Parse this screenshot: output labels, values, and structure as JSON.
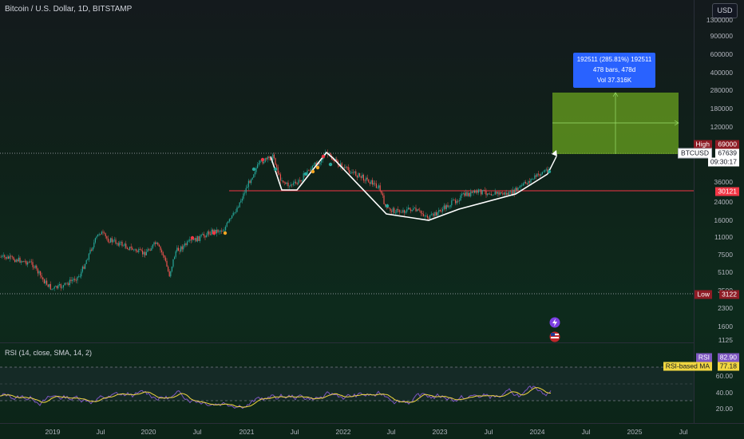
{
  "header": {
    "title": "Bitcoin / U.S. Dollar, 1D, BITSTAMP",
    "currency_button": "USD"
  },
  "price_axis": {
    "ticks": [
      "1300000",
      "900000",
      "600000",
      "400000",
      "280000",
      "180000",
      "120000",
      "36000",
      "24000",
      "16000",
      "11000",
      "7500",
      "5100",
      "3500",
      "2300",
      "1600",
      "1125"
    ],
    "high_label": "High",
    "high_value": "69000",
    "symbol_label": "BTCUSD",
    "last_price": "67639",
    "countdown": "09:30:17",
    "level_value": "30121",
    "low_label": "Low",
    "low_value": "3122"
  },
  "measure_tool": {
    "line1": "192511 (285.81%) 192511",
    "line2": "478 bars, 478d",
    "line3": "Vol 37.316K"
  },
  "rsi_pane": {
    "title": "RSI (14, close, SMA, 14, 2)",
    "rsi_label": "RSI",
    "rsi_value": "82.90",
    "ma_label": "RSI-based MA",
    "ma_value": "77.18",
    "ticks": [
      "60.00",
      "40.00",
      "20.00"
    ]
  },
  "time_axis": {
    "labels": [
      "2019",
      "Jul",
      "2020",
      "Jul",
      "2021",
      "Jul",
      "2022",
      "Jul",
      "2023",
      "Jul",
      "2024",
      "Jul",
      "2025",
      "Jul"
    ]
  },
  "colors": {
    "candle_up": "#26a69a",
    "candle_down": "#ef5350",
    "pattern_line": "#ffffff",
    "level_line": "#f23645",
    "rsi_line": "#7e57c2",
    "rsi_ma": "#f0d640",
    "target_zone": "#6aa31f",
    "measure_box": "#2962ff"
  },
  "icons": [
    "lightning-icon",
    "us-flag-icon"
  ]
}
